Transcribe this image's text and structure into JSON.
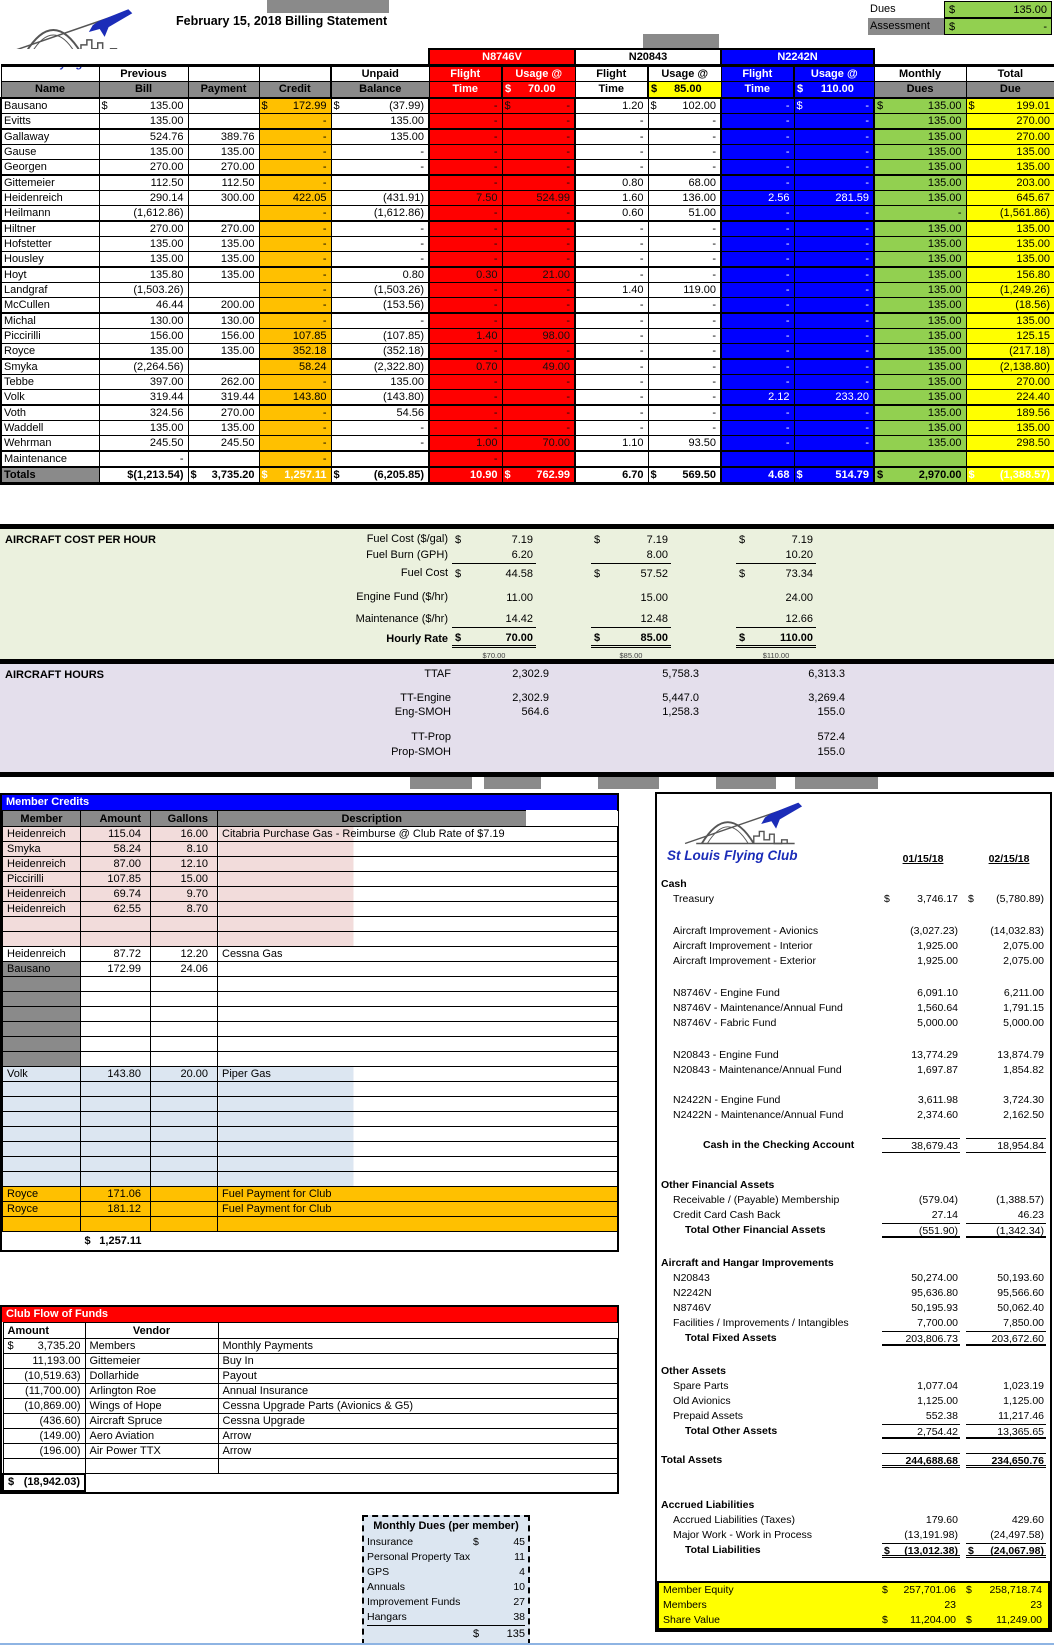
{
  "app": {
    "title": "February 15, 2018 Billing Statement"
  },
  "logo": {
    "club_name": "St Louis Flying Club"
  },
  "colors": {
    "red": "#FF0000",
    "blue": "#0000FF",
    "green": "#92D050",
    "yellow": "#FFFF00",
    "orange": "#FFC000",
    "pink": "#F2DCDB",
    "light_blue": "#DCE6F1",
    "cost_section_bg": "#EBF1DE",
    "hours_section_bg": "#E4DFEC",
    "brand_blue": "#1B2CB8",
    "gray": "#8A8A8A"
  },
  "dues_box": {
    "dues_label": "Dues",
    "dues_value": "$|135.00",
    "assessment_label": "Assessment",
    "assessment_value": "$|-"
  },
  "billing": {
    "aircraft": [
      {
        "name": "N8746V"
      },
      {
        "name": "N20843"
      },
      {
        "name": "N2242N"
      }
    ],
    "header_line1": [
      {
        "t": ""
      },
      {
        "t": "Previous"
      },
      {
        "t": ""
      },
      {
        "t": ""
      },
      {
        "t": "Unpaid"
      },
      {
        "t": "Flight",
        "cls": "redbg"
      },
      {
        "t": "Usage @",
        "cls": "redbg"
      },
      {
        "t": "Flight"
      },
      {
        "t": "Usage @"
      },
      {
        "t": "Flight",
        "cls": "bluebg"
      },
      {
        "t": "Usage @",
        "cls": "bluebg"
      },
      {
        "t": "Monthly"
      },
      {
        "t": "Total"
      }
    ],
    "header_line2": [
      {
        "t": "Name",
        "cls": "graybg"
      },
      {
        "t": "Bill",
        "cls": "graybg"
      },
      {
        "t": "Payment",
        "cls": "graybg"
      },
      {
        "t": "Credit",
        "cls": "graybg"
      },
      {
        "t": "Balance",
        "cls": "graybg"
      },
      {
        "t": "Time",
        "cls": "redbg"
      },
      {
        "t": "$|70.00",
        "cls": "redbg"
      },
      {
        "t": "Time"
      },
      {
        "t": "$|85.00",
        "cls": "yellowbg"
      },
      {
        "t": "Time",
        "cls": "bluebg"
      },
      {
        "t": "$|110.00",
        "cls": "bluebg"
      },
      {
        "t": "Dues",
        "cls": "graybg"
      },
      {
        "t": "Due",
        "cls": "graybg"
      }
    ],
    "rows": [
      {
        "n": "Bausano",
        "pb": "$|135.00",
        "pay": "",
        "cr": "$|172.99",
        "ub": "$|(37.99)",
        "f1": "-",
        "u1": "$|-",
        "f2": "1.20",
        "u2": "$|102.00",
        "f3": "-",
        "u3": "$|-",
        "md": "$|135.00",
        "td": "$|199.01"
      },
      {
        "n": "Evitts",
        "pb": "135.00",
        "pay": "",
        "cr": "-",
        "ub": "135.00",
        "f1": "-",
        "u1": "-",
        "f2": "-",
        "u2": "-",
        "f3": "-",
        "u3": "-",
        "md": "135.00",
        "td": "270.00"
      },
      {
        "n": "Gallaway",
        "pb": "524.76",
        "pay": "389.76",
        "cr": "-",
        "ub": "135.00",
        "f1": "-",
        "u1": "-",
        "f2": "-",
        "u2": "-",
        "f3": "-",
        "u3": "-",
        "md": "135.00",
        "td": "270.00"
      },
      {
        "n": "Gause",
        "pb": "135.00",
        "pay": "135.00",
        "cr": "-",
        "ub": "-",
        "f1": "-",
        "u1": "-",
        "f2": "-",
        "u2": "-",
        "f3": "-",
        "u3": "-",
        "md": "135.00",
        "td": "135.00"
      },
      {
        "n": "Georgen",
        "pb": "270.00",
        "pay": "270.00",
        "cr": "-",
        "ub": "-",
        "f1": "-",
        "u1": "-",
        "f2": "-",
        "u2": "-",
        "f3": "-",
        "u3": "-",
        "md": "135.00",
        "td": "135.00"
      },
      {
        "n": "Gittemeier",
        "pb": "112.50",
        "pay": "112.50",
        "cr": "-",
        "ub": "",
        "f1": "-",
        "u1": "-",
        "f2": "0.80",
        "u2": "68.00",
        "f3": "-",
        "u3": "-",
        "md": "135.00",
        "td": "203.00"
      },
      {
        "n": "Heidenreich",
        "pb": "290.14",
        "pay": "300.00",
        "cr": "422.05",
        "ub": "(431.91)",
        "f1": "7.50",
        "u1": "524.99",
        "f2": "1.60",
        "u2": "136.00",
        "f3": "2.56",
        "u3": "281.59",
        "md": "135.00",
        "td": "645.67"
      },
      {
        "n": "Heilmann",
        "pb": "(1,612.86)",
        "pay": "",
        "cr": "-",
        "ub": "(1,612.86)",
        "f1": "-",
        "u1": "-",
        "f2": "0.60",
        "u2": "51.00",
        "f3": "-",
        "u3": "-",
        "md": "-",
        "td": "(1,561.86)"
      },
      {
        "n": "Hiltner",
        "pb": "270.00",
        "pay": "270.00",
        "cr": "-",
        "ub": "-",
        "f1": "-",
        "u1": "-",
        "f2": "-",
        "u2": "-",
        "f3": "-",
        "u3": "-",
        "md": "135.00",
        "td": "135.00"
      },
      {
        "n": "Hofstetter",
        "pb": "135.00",
        "pay": "135.00",
        "cr": "-",
        "ub": "-",
        "f1": "-",
        "u1": "-",
        "f2": "-",
        "u2": "-",
        "f3": "-",
        "u3": "-",
        "md": "135.00",
        "td": "135.00"
      },
      {
        "n": "Housley",
        "pb": "135.00",
        "pay": "135.00",
        "cr": "-",
        "ub": "-",
        "f1": "-",
        "u1": "-",
        "f2": "-",
        "u2": "-",
        "f3": "-",
        "u3": "-",
        "md": "135.00",
        "td": "135.00"
      },
      {
        "n": "Hoyt",
        "pb": "135.80",
        "pay": "135.00",
        "cr": "-",
        "ub": "0.80",
        "f1": "0.30",
        "u1": "21.00",
        "f2": "-",
        "u2": "-",
        "f3": "-",
        "u3": "-",
        "md": "135.00",
        "td": "156.80"
      },
      {
        "n": "Landgraf",
        "pb": "(1,503.26)",
        "pay": "",
        "cr": "-",
        "ub": "(1,503.26)",
        "f1": "-",
        "u1": "-",
        "f2": "1.40",
        "u2": "119.00",
        "f3": "-",
        "u3": "-",
        "md": "135.00",
        "td": "(1,249.26)"
      },
      {
        "n": "McCullen",
        "pb": "46.44",
        "pay": "200.00",
        "cr": "-",
        "ub": "(153.56)",
        "f1": "-",
        "u1": "-",
        "f2": "-",
        "u2": "-",
        "f3": "-",
        "u3": "-",
        "md": "135.00",
        "td": "(18.56)"
      },
      {
        "n": "Michal",
        "pb": "130.00",
        "pay": "130.00",
        "cr": "-",
        "ub": "-",
        "f1": "-",
        "u1": "-",
        "f2": "-",
        "u2": "-",
        "f3": "-",
        "u3": "-",
        "md": "135.00",
        "td": "135.00"
      },
      {
        "n": "Piccirilli",
        "pb": "156.00",
        "pay": "156.00",
        "cr": "107.85",
        "ub": "(107.85)",
        "f1": "1.40",
        "u1": "98.00",
        "f2": "-",
        "u2": "-",
        "f3": "-",
        "u3": "-",
        "md": "135.00",
        "td": "125.15"
      },
      {
        "n": "Royce",
        "pb": "135.00",
        "pay": "135.00",
        "cr": "352.18",
        "ub": "(352.18)",
        "f1": "-",
        "u1": "-",
        "f2": "-",
        "u2": "-",
        "f3": "-",
        "u3": "-",
        "md": "135.00",
        "td": "(217.18)"
      },
      {
        "n": "Smyka",
        "pb": "(2,264.56)",
        "pay": "",
        "cr": "58.24",
        "ub": "(2,322.80)",
        "f1": "0.70",
        "u1": "49.00",
        "f2": "-",
        "u2": "-",
        "f3": "-",
        "u3": "-",
        "md": "135.00",
        "td": "(2,138.80)"
      },
      {
        "n": "Tebbe",
        "pb": "397.00",
        "pay": "262.00",
        "cr": "-",
        "ub": "135.00",
        "f1": "-",
        "u1": "-",
        "f2": "-",
        "u2": "-",
        "f3": "-",
        "u3": "-",
        "md": "135.00",
        "td": "270.00"
      },
      {
        "n": "Volk",
        "pb": "319.44",
        "pay": "319.44",
        "cr": "143.80",
        "ub": "(143.80)",
        "f1": "-",
        "u1": "-",
        "f2": "-",
        "u2": "-",
        "f3": "2.12",
        "u3": "233.20",
        "md": "135.00",
        "td": "224.40"
      },
      {
        "n": "Voth",
        "pb": "324.56",
        "pay": "270.00",
        "cr": "-",
        "ub": "54.56",
        "f1": "-",
        "u1": "-",
        "f2": "-",
        "u2": "-",
        "f3": "-",
        "u3": "-",
        "md": "135.00",
        "td": "189.56"
      },
      {
        "n": "Waddell",
        "pb": "135.00",
        "pay": "135.00",
        "cr": "-",
        "ub": "-",
        "f1": "-",
        "u1": "-",
        "f2": "-",
        "u2": "-",
        "f3": "-",
        "u3": "-",
        "md": "135.00",
        "td": "135.00"
      },
      {
        "n": "Wehrman",
        "pb": "245.50",
        "pay": "245.50",
        "cr": "-",
        "ub": "-",
        "f1": "1.00",
        "u1": "70.00",
        "f2": "1.10",
        "u2": "93.50",
        "f3": "-",
        "u3": "-",
        "md": "135.00",
        "td": "298.50"
      },
      {
        "n": "Maintenance",
        "pb": "-",
        "pay": "",
        "cr": "-",
        "ub": "",
        "f1": "-",
        "u1": "",
        "f2": "",
        "u2": "",
        "f3": "",
        "u3": "",
        "md": "",
        "td": ""
      }
    ],
    "totals": {
      "n": "Totals",
      "pb": "$(1,213.54)",
      "pay": "$|3,735.20",
      "cr": "$|1,257.11",
      "ub": "$|(6,205.85)",
      "f1": "10.90",
      "u1": "$|762.99",
      "f2": "6.70",
      "u2": "$|569.50",
      "f3": "4.68",
      "u3": "$|514.79",
      "md": "$|2,970.00",
      "td": "$|(1,388.57)"
    }
  },
  "cost_per_hour": {
    "title": "AIRCRAFT COST PER HOUR",
    "rows": [
      {
        "l": "Fuel Cost ($/gal)",
        "v1": "$|7.19",
        "v2": "$|7.19",
        "v3": "$|7.19"
      },
      {
        "l": "Fuel Burn (GPH)",
        "v1": "6.20",
        "v2": "8.00",
        "v3": "10.20",
        "cls": "u"
      },
      {
        "l": "Fuel Cost",
        "v1": "$|44.58",
        "v2": "$|57.52",
        "v3": "$|73.34",
        "cls": "g2"
      },
      {
        "l": "Engine Fund ($/hr)",
        "v1": "11.00",
        "v2": "15.00",
        "v3": "24.00",
        "cls": "g8"
      },
      {
        "l": "Maintenance ($/hr)",
        "v1": "14.42",
        "v2": "12.48",
        "v3": "12.66",
        "cls": "u g6"
      },
      {
        "l": "Hourly Rate",
        "v1": "$|70.00",
        "v2": "$|85.00",
        "v3": "$|110.00",
        "cls": "rate g4"
      }
    ],
    "footnote": {
      "v1": "$70.00",
      "v2": "$85.00",
      "v3": "$110.00"
    }
  },
  "aircraft_hours": {
    "title": "AIRCRAFT HOURS",
    "rows": [
      {
        "l": "TTAF",
        "v1": "2,302.9",
        "v2": "5,758.3",
        "v3": "6,313.3"
      },
      {
        "l": "TT-Engine",
        "v1": "2,302.9",
        "v2": "5,447.0",
        "v3": "3,269.4",
        "cls": "g10"
      },
      {
        "l": "Eng-SMOH",
        "v1": "564.6",
        "v2": "1,258.3",
        "v3": "155.0"
      },
      {
        "l": "TT-Prop",
        "v3": "572.4",
        "cls": "g11"
      },
      {
        "l": "Prop-SMOH",
        "v3": "155.0",
        "cls": "g1"
      }
    ]
  },
  "member_credits": {
    "title": "Member Credits",
    "headers": [
      "Member",
      "Amount",
      "Gallons",
      "Description"
    ],
    "rows": [
      {
        "m": "Heidenreich",
        "a": "115.04",
        "g": "16.00",
        "d": "Citabria Purchase Gas - Reimburse @ Club Rate of $7.19",
        "cls": "pink"
      },
      {
        "m": "Smyka",
        "a": "58.24",
        "g": "8.10",
        "cls": "pink"
      },
      {
        "m": "Heidenreich",
        "a": "87.00",
        "g": "12.10",
        "cls": "pink"
      },
      {
        "m": "Piccirilli",
        "a": "107.85",
        "g": "15.00",
        "cls": "pink"
      },
      {
        "m": "Heidenreich",
        "a": "69.74",
        "g": "9.70",
        "cls": "pink"
      },
      {
        "m": "Heidenreich",
        "a": "62.55",
        "g": "8.70",
        "cls": "pink"
      },
      {
        "cls": "pink"
      },
      {
        "cls": "pink"
      },
      {
        "m": "Heidenreich",
        "a": "87.72",
        "g": "12.20",
        "d": "Cessna Gas"
      },
      {
        "m": "Bausano",
        "a": "172.99",
        "g": "24.06",
        "cls": "gray1"
      },
      {
        "cls": "gray1"
      },
      {
        "cls": "gray1"
      },
      {
        "cls": "gray1"
      },
      {
        "cls": "gray1"
      },
      {
        "cls": "gray1"
      },
      {
        "cls": "gray1"
      },
      {
        "m": "Volk",
        "a": "143.80",
        "g": "20.00",
        "d": "Piper Gas",
        "cls": "lblue"
      },
      {
        "cls": "lblue"
      },
      {
        "cls": "lblue"
      },
      {
        "cls": "lblue"
      },
      {
        "cls": "lblue"
      },
      {
        "cls": "lblue"
      },
      {
        "cls": "lblue"
      },
      {
        "cls": "lblue"
      },
      {
        "m": "Royce",
        "a": "171.06",
        "d": "Fuel Payment for Club",
        "cls": "orange"
      },
      {
        "m": "Royce",
        "a": "181.12",
        "d": "Fuel Payment for Club",
        "cls": "orange"
      },
      {
        "cls": "orange"
      }
    ],
    "total": "$|1,257.11"
  },
  "club_flow": {
    "title": "Club Flow of Funds",
    "headers": [
      "Amount",
      "Vendor"
    ],
    "rows": [
      {
        "a": "$|3,735.20",
        "v": "Members",
        "d": "Monthly Payments"
      },
      {
        "a": "11,193.00",
        "v": "Gittemeier",
        "d": "Buy In"
      },
      {
        "a": "(10,519.63)",
        "v": "Dollarhide",
        "d": "Payout"
      },
      {
        "a": "(11,700.00)",
        "v": "Arlington Roe",
        "d": "Annual Insurance"
      },
      {
        "a": "(10,869.00)",
        "v": "Wings of Hope",
        "d": "Cessna Upgrade Parts (Avionics & G5)"
      },
      {
        "a": "(436.60)",
        "v": "Aircraft Spruce",
        "d": "Cessna Upgrade"
      },
      {
        "a": "(149.00)",
        "v": "Aero Aviation",
        "d": "Arrow"
      },
      {
        "a": "(196.00)",
        "v": "Air Power TTX",
        "d": "Arrow"
      },
      {}
    ],
    "total": "$|(18,942.03)"
  },
  "monthly_dues": {
    "title": "Monthly Dues (per member)",
    "rows": [
      {
        "l": "Insurance",
        "v": "$|45"
      },
      {
        "l": "Personal Property Tax",
        "v": "11"
      },
      {
        "l": "GPS",
        "v": "4"
      },
      {
        "l": "Annuals",
        "v": "10"
      },
      {
        "l": "Improvement Funds",
        "v": "27"
      },
      {
        "l": "Hangars",
        "v": "38"
      }
    ],
    "total": "$|135"
  },
  "balance_sheet": {
    "club_name": "St Louis Flying Club",
    "date1": "01/15/18",
    "date2": "02/15/18",
    "rows": [
      {
        "l": "Cash",
        "cls": "b"
      },
      {
        "l": "Treasury",
        "p1": "$",
        "v1": "3,746.17",
        "p2": "$",
        "v2": "(5,780.89)",
        "cls": "i1"
      },
      {
        "cls": "sp s17"
      },
      {
        "l": "Aircraft Improvement - Avionics",
        "v1": "(3,027.23)",
        "v2": "(14,032.83)",
        "cls": "i1"
      },
      {
        "l": "Aircraft Improvement - Interior",
        "v1": "1,925.00",
        "v2": "2,075.00",
        "cls": "i1"
      },
      {
        "l": "Aircraft Improvement - Exterior",
        "v1": "1,925.00",
        "v2": "2,075.00",
        "cls": "i1"
      },
      {
        "cls": "sp s17"
      },
      {
        "l": "N8746V - Engine Fund",
        "v1": "6,091.10",
        "v2": "6,211.00",
        "cls": "i1"
      },
      {
        "l": "N8746V - Maintenance/Annual Fund",
        "v1": "1,560.64",
        "v2": "1,791.15",
        "cls": "i1"
      },
      {
        "l": "N8746V - Fabric Fund",
        "v1": "5,000.00",
        "v2": "5,000.00",
        "cls": "i1"
      },
      {
        "cls": "sp s17"
      },
      {
        "l": "N20843 - Engine Fund",
        "v1": "13,774.29",
        "v2": "13,874.79",
        "cls": "i1"
      },
      {
        "l": "N20843 - Maintenance/Annual Fund",
        "v1": "1,697.87",
        "v2": "1,854.82",
        "cls": "i1"
      },
      {
        "cls": "sp s15"
      },
      {
        "l": "N2422N - Engine Fund",
        "v1": "3,611.98",
        "v2": "3,724.30",
        "cls": "i1"
      },
      {
        "l": "N2422N - Maintenance/Annual Fund",
        "v1": "2,374.60",
        "v2": "2,162.50",
        "cls": "i1"
      },
      {
        "cls": "sp s15"
      },
      {
        "l": "Cash in the Checking Account",
        "v1": "38,679.43",
        "v2": "18,954.84",
        "cls": "b i3 line"
      },
      {
        "cls": "sp s25"
      },
      {
        "l": "Other Financial Assets",
        "cls": "b"
      },
      {
        "l": "Receivable / (Payable) Membership",
        "v1": "(579.04)",
        "v2": "(1,388.57)",
        "cls": "i1"
      },
      {
        "l": "Credit Card Cash Back",
        "v1": "27.14",
        "v2": "46.23",
        "cls": "i1"
      },
      {
        "l": "Total Other Financial Assets",
        "v1": "(551.90)",
        "v2": "(1,342.34)",
        "cls": "b i2 total"
      },
      {
        "cls": "sp s18"
      },
      {
        "l": "Aircraft and Hangar Improvements",
        "cls": "b"
      },
      {
        "l": "N20843",
        "v1": "50,274.00",
        "v2": "50,193.60",
        "cls": "i1"
      },
      {
        "l": "N2242N",
        "v1": "95,636.80",
        "v2": "95,566.60",
        "cls": "i1"
      },
      {
        "l": "N8746V",
        "v1": "50,195.93",
        "v2": "50,062.40",
        "cls": "i1"
      },
      {
        "l": "Facilities / Improvements / Intangibles",
        "v1": "7,700.00",
        "v2": "7,850.00",
        "cls": "i1"
      },
      {
        "l": "Total Fixed Assets",
        "v1": "203,806.73",
        "v2": "203,672.60",
        "cls": "b i2 total"
      },
      {
        "cls": "sp s18"
      },
      {
        "l": "Other Assets",
        "cls": "b"
      },
      {
        "l": "Spare Parts",
        "v1": "1,077.04",
        "v2": "1,023.19",
        "cls": "i1"
      },
      {
        "l": "Old Avionics",
        "v1": "1,125.00",
        "v2": "1,125.00",
        "cls": "i1"
      },
      {
        "l": "Prepaid Assets",
        "v1": "552.38",
        "v2": "11,217.46",
        "cls": "i1"
      },
      {
        "l": "Total Other Assets",
        "v1": "2,754.42",
        "v2": "13,365.65",
        "cls": "b i2 total"
      },
      {
        "cls": "sp s14"
      },
      {
        "l": "Total Assets",
        "v1": "244,688.68",
        "v2": "234,650.76",
        "cls": "b vb dbl"
      },
      {
        "cls": "sp s30"
      },
      {
        "l": "Accrued Liabilities",
        "cls": "b"
      },
      {
        "l": "Accrued Liabilities (Taxes)",
        "v1": "179.60",
        "v2": "429.60",
        "cls": "i1"
      },
      {
        "l": "Major Work - Work in Process",
        "v1": "(13,191.98)",
        "v2": "(24,497.58)",
        "cls": "i1"
      },
      {
        "l": "Total Liabilities",
        "p1": "$",
        "v1": "(13,012.38)",
        "p2": "$",
        "v2": "(24,067.98)",
        "cls": "b vb i2 dbl"
      },
      {
        "cls": "sp s23"
      }
    ],
    "equity_rows": [
      {
        "l": "Member Equity",
        "p1": "$",
        "v1": "257,701.06",
        "p2": "$",
        "v2": "258,718.74"
      },
      {
        "l": "Members",
        "v1": "23",
        "v2": "23"
      },
      {
        "l": "Share Value",
        "p1": "$",
        "v1": "11,204.00",
        "p2": "$",
        "v2": "11,249.00"
      }
    ]
  }
}
